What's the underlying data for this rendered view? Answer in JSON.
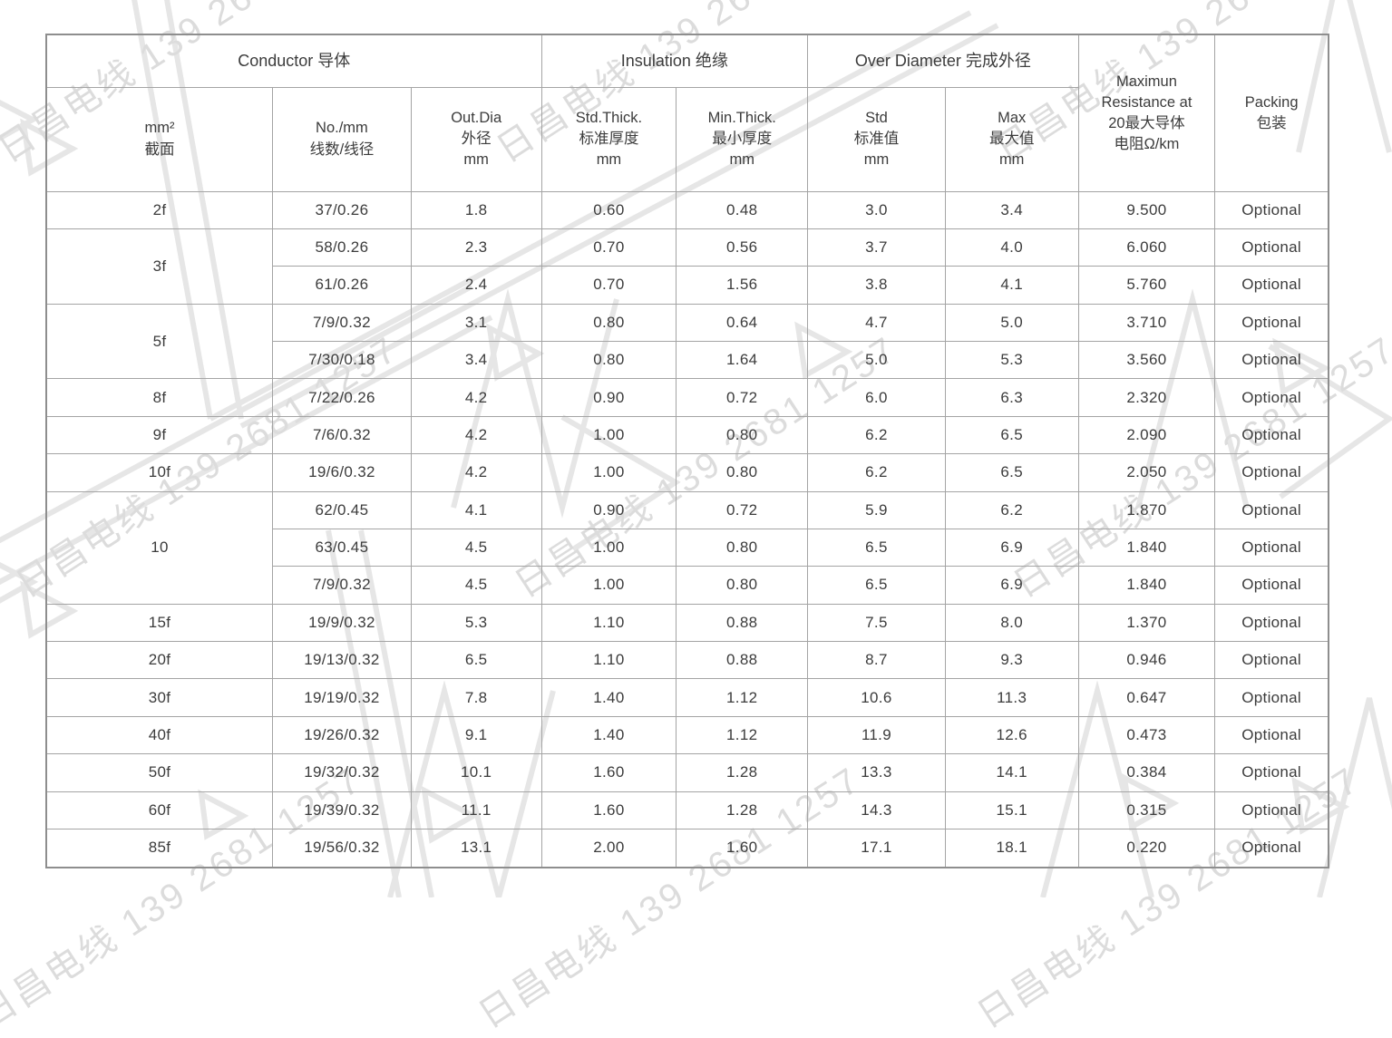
{
  "watermark": {
    "text": "日昌电线 139 2681 1257",
    "color": "#dcdcdc",
    "shape_color": "#e6e6e6"
  },
  "colors": {
    "table_border": "#a4a4a4",
    "table_outer_border": "#8e8e8e",
    "text": "#3c3c3c"
  },
  "table": {
    "header_groups": [
      {
        "label": "Conductor 导体"
      },
      {
        "label": "Insulation 绝缘"
      },
      {
        "label": "Over Diameter 完成外径"
      }
    ],
    "merged_headers": [
      {
        "label": "Maximun\nResistance at\n20最大导体\n电阻Ω/km"
      },
      {
        "label": "Packing\n包装"
      }
    ],
    "sub_headers": [
      "mm²\n截面",
      "No./mm\n线数/线径",
      "Out.Dia\n外径\nmm",
      "Std.Thick.\n标准厚度\nmm",
      "Min.Thick.\n最小厚度\nmm",
      "Std\n标准值\nmm",
      "Max\n最大值\nmm"
    ],
    "rows": [
      {
        "size": "2f",
        "span": 1,
        "cells": [
          "37/0.26",
          "1.8",
          "0.60",
          "0.48",
          "3.0",
          "3.4",
          "9.500",
          "Optional"
        ]
      },
      {
        "size": "3f",
        "span": 2,
        "cells": [
          "58/0.26",
          "2.3",
          "0.70",
          "0.56",
          "3.7",
          "4.0",
          "6.060",
          "Optional"
        ]
      },
      {
        "cells": [
          "61/0.26",
          "2.4",
          "0.70",
          "1.56",
          "3.8",
          "4.1",
          "5.760",
          "Optional"
        ]
      },
      {
        "size": "5f",
        "span": 2,
        "cells": [
          "7/9/0.32",
          "3.1",
          "0.80",
          "0.64",
          "4.7",
          "5.0",
          "3.710",
          "Optional"
        ]
      },
      {
        "cells": [
          "7/30/0.18",
          "3.4",
          "0.80",
          "1.64",
          "5.0",
          "5.3",
          "3.560",
          "Optional"
        ]
      },
      {
        "size": "8f",
        "span": 1,
        "cells": [
          "7/22/0.26",
          "4.2",
          "0.90",
          "0.72",
          "6.0",
          "6.3",
          "2.320",
          "Optional"
        ]
      },
      {
        "size": "9f",
        "span": 1,
        "cells": [
          "7/6/0.32",
          "4.2",
          "1.00",
          "0.80",
          "6.2",
          "6.5",
          "2.090",
          "Optional"
        ]
      },
      {
        "size": "10f",
        "span": 1,
        "cells": [
          "19/6/0.32",
          "4.2",
          "1.00",
          "0.80",
          "6.2",
          "6.5",
          "2.050",
          "Optional"
        ]
      },
      {
        "size": "10",
        "span": 3,
        "cells": [
          "62/0.45",
          "4.1",
          "0.90",
          "0.72",
          "5.9",
          "6.2",
          "1.870",
          "Optional"
        ]
      },
      {
        "cells": [
          "63/0.45",
          "4.5",
          "1.00",
          "0.80",
          "6.5",
          "6.9",
          "1.840",
          "Optional"
        ]
      },
      {
        "cells": [
          "7/9/0.32",
          "4.5",
          "1.00",
          "0.80",
          "6.5",
          "6.9",
          "1.840",
          "Optional"
        ]
      },
      {
        "size": "15f",
        "span": 1,
        "cells": [
          "19/9/0.32",
          "5.3",
          "1.10",
          "0.88",
          "7.5",
          "8.0",
          "1.370",
          "Optional"
        ]
      },
      {
        "size": "20f",
        "span": 1,
        "cells": [
          "19/13/0.32",
          "6.5",
          "1.10",
          "0.88",
          "8.7",
          "9.3",
          "0.946",
          "Optional"
        ]
      },
      {
        "size": "30f",
        "span": 1,
        "cells": [
          "19/19/0.32",
          "7.8",
          "1.40",
          "1.12",
          "10.6",
          "11.3",
          "0.647",
          "Optional"
        ]
      },
      {
        "size": "40f",
        "span": 1,
        "cells": [
          "19/26/0.32",
          "9.1",
          "1.40",
          "1.12",
          "11.9",
          "12.6",
          "0.473",
          "Optional"
        ]
      },
      {
        "size": "50f",
        "span": 1,
        "cells": [
          "19/32/0.32",
          "10.1",
          "1.60",
          "1.28",
          "13.3",
          "14.1",
          "0.384",
          "Optional"
        ]
      },
      {
        "size": "60f",
        "span": 1,
        "cells": [
          "19/39/0.32",
          "11.1",
          "1.60",
          "1.28",
          "14.3",
          "15.1",
          "0.315",
          "Optional"
        ]
      },
      {
        "size": "85f",
        "span": 1,
        "cells": [
          "19/56/0.32",
          "13.1",
          "2.00",
          "1.60",
          "17.1",
          "18.1",
          "0.220",
          "Optional"
        ]
      }
    ]
  }
}
